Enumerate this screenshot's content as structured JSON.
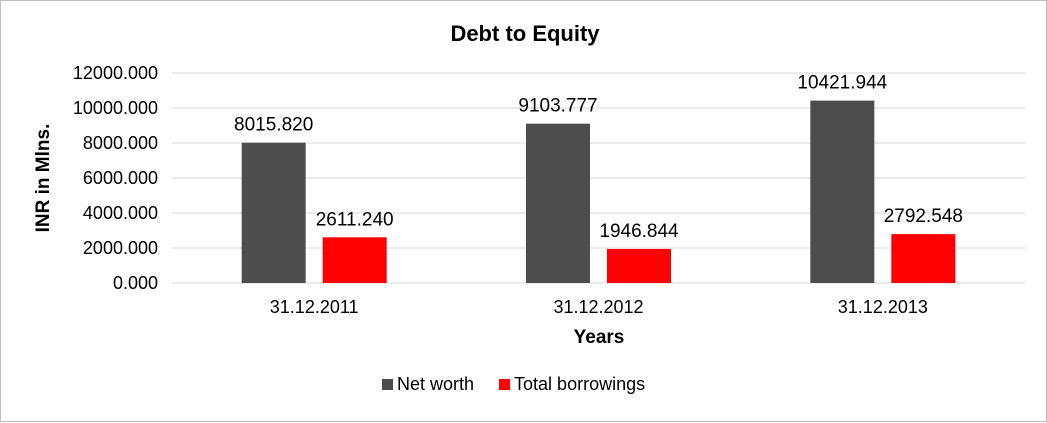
{
  "chart_data": {
    "type": "bar",
    "title": "Debt to Equity",
    "xlabel": "Years",
    "ylabel": "INR in Mlns.",
    "categories": [
      "31.12.2011",
      "31.12.2012",
      "31.12.2013"
    ],
    "series": [
      {
        "name": "Net worth",
        "color": "#4d4d4d",
        "values": [
          8015.82,
          9103.777,
          10421.944
        ],
        "labels": [
          "8015.820",
          "9103.777",
          "10421.944"
        ]
      },
      {
        "name": "Total borrowings",
        "color": "#ff0000",
        "values": [
          2611.24,
          1946.844,
          2792.548
        ],
        "labels": [
          "2611.240",
          "1946.844",
          "2792.548"
        ]
      }
    ],
    "ylim": [
      0,
      12000
    ],
    "yticks": [
      0,
      2000,
      4000,
      6000,
      8000,
      10000,
      12000
    ],
    "ytick_labels": [
      "0.000",
      "2000.000",
      "4000.000",
      "6000.000",
      "8000.000",
      "10000.000",
      "12000.000"
    ],
    "grid": true,
    "legend_position": "bottom"
  }
}
